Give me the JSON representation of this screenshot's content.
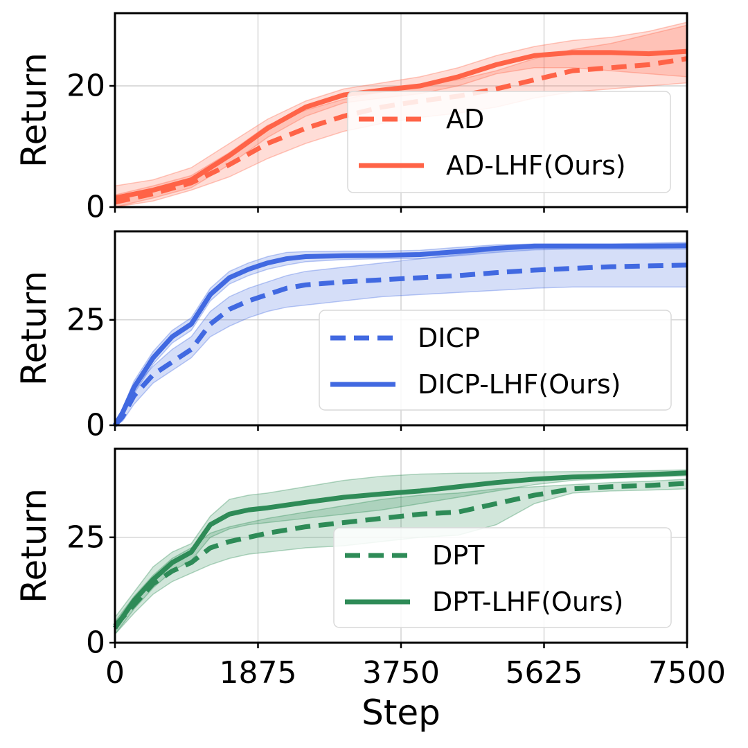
{
  "chart_data": [
    {
      "type": "line",
      "panel": "top",
      "ylabel": "Return",
      "xlabel": "",
      "xlim": [
        0,
        7500
      ],
      "ylim": [
        0,
        32
      ],
      "xticks": [
        0,
        1875,
        3750,
        5625,
        7500
      ],
      "xtick_labels": [
        "0",
        "1875",
        "3750",
        "5625",
        "7500"
      ],
      "yticks": [
        0,
        20
      ],
      "ytick_labels": [
        "0",
        "20"
      ],
      "grid": true,
      "legend_position": "lower-right",
      "series": [
        {
          "name": "AD",
          "style": "dashed",
          "color": "#ff6347",
          "x": [
            0,
            500,
            1000,
            1500,
            2000,
            2500,
            3000,
            3500,
            4000,
            4500,
            5000,
            5500,
            6000,
            6500,
            7000,
            7500
          ],
          "y": [
            0.8,
            2.2,
            4.0,
            7.0,
            10.5,
            13.0,
            15.0,
            16.5,
            17.5,
            18.3,
            19.5,
            21.0,
            22.5,
            23.0,
            23.5,
            24.5
          ],
          "lower": [
            0.0,
            1.0,
            2.8,
            5.0,
            8.0,
            10.5,
            12.5,
            13.8,
            14.8,
            15.5,
            16.5,
            18.0,
            19.0,
            19.5,
            20.0,
            20.5
          ],
          "upper": [
            2.0,
            3.5,
            5.2,
            9.0,
            13.5,
            16.0,
            17.8,
            19.0,
            20.2,
            21.0,
            22.5,
            24.5,
            26.0,
            27.0,
            28.5,
            30.0
          ]
        },
        {
          "name": "AD-LHF(Ours)",
          "style": "solid",
          "color": "#ff6347",
          "x": [
            0,
            500,
            1000,
            1500,
            2000,
            2500,
            3000,
            3500,
            4000,
            4500,
            5000,
            5500,
            6000,
            6500,
            7000,
            7500
          ],
          "y": [
            1.5,
            2.8,
            4.5,
            8.5,
            13.0,
            16.5,
            18.5,
            19.3,
            20.0,
            21.5,
            23.5,
            25.0,
            25.5,
            25.5,
            25.3,
            25.7
          ],
          "lower": [
            0.0,
            1.5,
            3.2,
            7.0,
            11.5,
            15.0,
            17.2,
            18.0,
            18.7,
            20.0,
            22.0,
            23.0,
            23.0,
            22.5,
            22.0,
            21.5
          ],
          "upper": [
            3.5,
            4.5,
            6.5,
            10.5,
            14.5,
            17.5,
            19.5,
            20.5,
            21.5,
            23.0,
            25.0,
            26.5,
            27.5,
            28.0,
            29.0,
            30.5
          ]
        }
      ]
    },
    {
      "type": "line",
      "panel": "middle",
      "ylabel": "Return",
      "xlabel": "",
      "xlim": [
        0,
        7500
      ],
      "ylim": [
        0,
        46
      ],
      "xticks": [
        0,
        1875,
        3750,
        5625,
        7500
      ],
      "xtick_labels": [
        "0",
        "1875",
        "3750",
        "5625",
        "7500"
      ],
      "yticks": [
        0,
        25
      ],
      "ytick_labels": [
        "0",
        "25"
      ],
      "grid": true,
      "legend_position": "lower-right",
      "series": [
        {
          "name": "DICP",
          "style": "dashed",
          "color": "#4169e1",
          "x": [
            0,
            100,
            250,
            500,
            750,
            1000,
            1250,
            1500,
            1750,
            2000,
            2250,
            2500,
            3000,
            3500,
            4000,
            4500,
            5000,
            5500,
            6000,
            6500,
            7000,
            7500
          ],
          "y": [
            0,
            2,
            7,
            12,
            15,
            18,
            24,
            27.5,
            29.5,
            31,
            32.5,
            33.3,
            34,
            34.5,
            35,
            35.5,
            36.2,
            36.8,
            37.2,
            37.6,
            37.8,
            38
          ],
          "lower": [
            0,
            1,
            5,
            10,
            13,
            16,
            21,
            23.5,
            25.5,
            27,
            28,
            28.5,
            29.5,
            30.5,
            31,
            31.5,
            32,
            32.5,
            32.8,
            32.8,
            32.8,
            32.8
          ],
          "upper": [
            0.5,
            3,
            9,
            14,
            18,
            21,
            27,
            30.5,
            32.5,
            34,
            35.5,
            36.5,
            37.5,
            38.5,
            39.5,
            40.5,
            41.5,
            42,
            42.5,
            42.5,
            42.8,
            43
          ]
        },
        {
          "name": "DICP-LHF(Ours)",
          "style": "solid",
          "color": "#4169e1",
          "x": [
            0,
            100,
            250,
            500,
            750,
            1000,
            1250,
            1500,
            1750,
            2000,
            2250,
            2500,
            3000,
            3500,
            4000,
            4500,
            5000,
            5500,
            6000,
            6500,
            7000,
            7500
          ],
          "y": [
            0,
            3,
            9,
            16,
            21,
            24,
            31,
            35,
            37,
            38.5,
            39.5,
            40,
            40.2,
            40.3,
            40.5,
            41.2,
            42,
            42.5,
            42.5,
            42.5,
            42.5,
            42.6
          ],
          "lower": [
            0,
            2,
            7.5,
            14.5,
            19.5,
            22.5,
            29.5,
            33.5,
            35.5,
            37,
            38,
            38.8,
            39.3,
            39.5,
            39.5,
            40.2,
            41,
            41.6,
            41.8,
            41.8,
            41.8,
            41.8
          ],
          "upper": [
            0.5,
            4,
            10.5,
            17.5,
            22.5,
            25.5,
            32.5,
            36.5,
            38.5,
            40,
            41,
            41.2,
            41.3,
            41.3,
            41.5,
            42.2,
            42.8,
            43,
            43,
            43,
            43.2,
            43.4
          ]
        }
      ]
    },
    {
      "type": "line",
      "panel": "bottom",
      "ylabel": "Return",
      "xlabel": "Step",
      "xlim": [
        0,
        7500
      ],
      "ylim": [
        0,
        46
      ],
      "xticks": [
        0,
        1875,
        3750,
        5625,
        7500
      ],
      "xtick_labels": [
        "0",
        "1875",
        "3750",
        "5625",
        "7500"
      ],
      "yticks": [
        0,
        25
      ],
      "ytick_labels": [
        "0",
        "25"
      ],
      "grid": true,
      "legend_position": "lower-right",
      "series": [
        {
          "name": "DPT",
          "style": "dashed",
          "color": "#2e8b57",
          "x": [
            0,
            250,
            500,
            750,
            1000,
            1250,
            1500,
            1750,
            2000,
            2500,
            3000,
            3500,
            4000,
            4500,
            5000,
            5500,
            6000,
            6500,
            7000,
            7500
          ],
          "y": [
            4,
            9,
            14,
            17,
            19,
            22.5,
            24,
            25,
            26,
            27.5,
            28.5,
            29.5,
            30.5,
            31,
            33,
            35,
            36.5,
            37,
            37.3,
            37.8
          ],
          "lower": [
            2,
            7,
            11.5,
            14.5,
            16.5,
            18.5,
            20,
            21,
            21.5,
            22.5,
            23,
            24,
            25,
            25.5,
            28,
            33,
            35.5,
            36,
            36.2,
            36.5
          ],
          "upper": [
            5,
            11,
            16,
            20,
            22.5,
            26,
            27.5,
            28.5,
            29.5,
            31,
            32.5,
            34,
            35,
            35.5,
            36.5,
            37,
            37.5,
            38,
            38.3,
            38.8
          ]
        },
        {
          "name": "DPT-LHF(Ours)",
          "style": "solid",
          "color": "#2e8b57",
          "x": [
            0,
            250,
            500,
            750,
            1000,
            1250,
            1500,
            1750,
            2000,
            2500,
            3000,
            3500,
            4000,
            4500,
            5000,
            5500,
            6000,
            6500,
            7000,
            7500
          ],
          "y": [
            3.5,
            10,
            15,
            19,
            21.5,
            28,
            30.5,
            31.5,
            32,
            33.3,
            34.5,
            35.3,
            36,
            37,
            38,
            38.8,
            39.3,
            39.6,
            39.9,
            40.3
          ],
          "lower": [
            2,
            8,
            13,
            17,
            19.5,
            25,
            27,
            28,
            28.5,
            29.5,
            30.5,
            31.5,
            33,
            34.5,
            36,
            37.5,
            38.5,
            39,
            39.3,
            39.6
          ],
          "upper": [
            6,
            12,
            18,
            21.5,
            23.5,
            30,
            34,
            35,
            35.5,
            37,
            38.5,
            39.5,
            40,
            40.2,
            40.3,
            40.5,
            40.6,
            40.7,
            40.8,
            41
          ]
        }
      ]
    }
  ]
}
